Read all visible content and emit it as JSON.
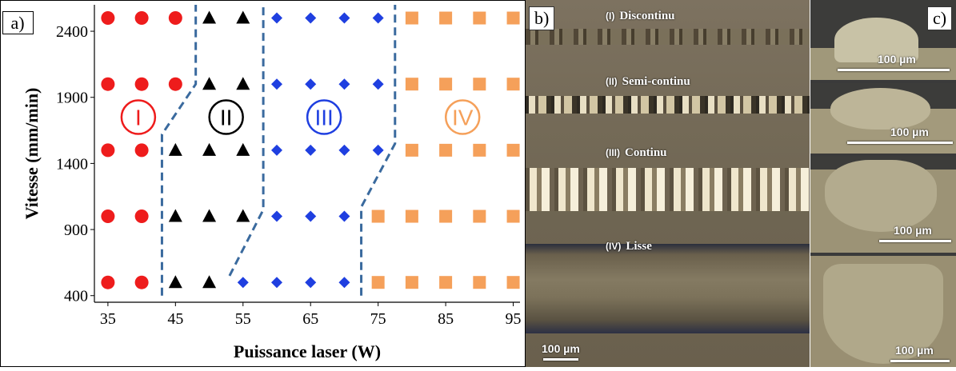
{
  "chart_data": {
    "type": "scatter",
    "panel_label": "a)",
    "xlabel": "Puissance laser (W)",
    "ylabel": "Vitesse (mm/min)",
    "xlim": [
      33,
      96
    ],
    "ylim": [
      350,
      2600
    ],
    "xticks": [
      35,
      45,
      55,
      65,
      75,
      85,
      95
    ],
    "yticks": [
      400,
      900,
      1400,
      1900,
      2400
    ],
    "series": [
      {
        "marker": "circle",
        "color": "#ee1c1c",
        "points": [
          [
            35,
            2500
          ],
          [
            40,
            2500
          ],
          [
            45,
            2500
          ],
          [
            35,
            2000
          ],
          [
            40,
            2000
          ],
          [
            45,
            2000
          ],
          [
            35,
            1500
          ],
          [
            40,
            1500
          ],
          [
            35,
            1000
          ],
          [
            40,
            1000
          ],
          [
            35,
            500
          ],
          [
            40,
            500
          ]
        ]
      },
      {
        "marker": "triangle",
        "color": "#000000",
        "points": [
          [
            50,
            2500
          ],
          [
            55,
            2500
          ],
          [
            50,
            2000
          ],
          [
            55,
            2000
          ],
          [
            45,
            1500
          ],
          [
            50,
            1500
          ],
          [
            55,
            1500
          ],
          [
            45,
            1000
          ],
          [
            50,
            1000
          ],
          [
            55,
            1000
          ],
          [
            45,
            500
          ],
          [
            50,
            500
          ]
        ]
      },
      {
        "marker": "diamond",
        "color": "#1f3fe0",
        "points": [
          [
            60,
            2500
          ],
          [
            65,
            2500
          ],
          [
            70,
            2500
          ],
          [
            75,
            2500
          ],
          [
            60,
            2000
          ],
          [
            65,
            2000
          ],
          [
            70,
            2000
          ],
          [
            75,
            2000
          ],
          [
            60,
            1500
          ],
          [
            65,
            1500
          ],
          [
            70,
            1500
          ],
          [
            75,
            1500
          ],
          [
            60,
            1000
          ],
          [
            65,
            1000
          ],
          [
            70,
            1000
          ],
          [
            55,
            500
          ],
          [
            60,
            500
          ],
          [
            65,
            500
          ],
          [
            70,
            500
          ]
        ]
      },
      {
        "marker": "square",
        "color": "#f5a05a",
        "points": [
          [
            80,
            2500
          ],
          [
            85,
            2500
          ],
          [
            90,
            2500
          ],
          [
            95,
            2500
          ],
          [
            80,
            2000
          ],
          [
            85,
            2000
          ],
          [
            90,
            2000
          ],
          [
            95,
            2000
          ],
          [
            80,
            1500
          ],
          [
            85,
            1500
          ],
          [
            90,
            1500
          ],
          [
            95,
            1500
          ],
          [
            75,
            1000
          ],
          [
            80,
            1000
          ],
          [
            85,
            1000
          ],
          [
            90,
            1000
          ],
          [
            95,
            1000
          ],
          [
            75,
            500
          ],
          [
            80,
            500
          ],
          [
            85,
            500
          ],
          [
            90,
            500
          ],
          [
            95,
            500
          ]
        ]
      }
    ],
    "boundaries": [
      {
        "color": "#3a6a9e",
        "points": [
          [
            43,
            400
          ],
          [
            43,
            1620
          ],
          [
            48,
            2000
          ],
          [
            48,
            2600
          ]
        ]
      },
      {
        "color": "#3a6a9e",
        "points": [
          [
            53,
            550
          ],
          [
            58,
            1050
          ],
          [
            58,
            2000
          ],
          [
            58,
            2600
          ]
        ]
      },
      {
        "color": "#3a6a9e",
        "points": [
          [
            72.5,
            400
          ],
          [
            72.5,
            1070
          ],
          [
            77.5,
            1550
          ],
          [
            77.5,
            2600
          ]
        ]
      }
    ],
    "regions": [
      {
        "label": "I",
        "x": 39.5,
        "y": 1750,
        "color": "#ee1c1c"
      },
      {
        "label": "II",
        "x": 52.5,
        "y": 1750,
        "color": "#000000"
      },
      {
        "label": "III",
        "x": 67,
        "y": 1750,
        "color": "#1f3fe0"
      },
      {
        "label": "IV",
        "x": 87.5,
        "y": 1750,
        "color": "#f5a05a"
      }
    ]
  },
  "panel_b": {
    "label": "b)",
    "rows": [
      {
        "tag": "(I)",
        "name": "Discontinu"
      },
      {
        "tag": "(II)",
        "name": "Semi-continu"
      },
      {
        "tag": "(III)",
        "name": "Continu"
      },
      {
        "tag": "(IV)",
        "name": "Lisse"
      }
    ],
    "scale": "100 µm"
  },
  "panel_c": {
    "label": "c)",
    "scales": [
      "100 µm",
      "100 µm",
      "100 µm",
      "100 µm"
    ]
  }
}
